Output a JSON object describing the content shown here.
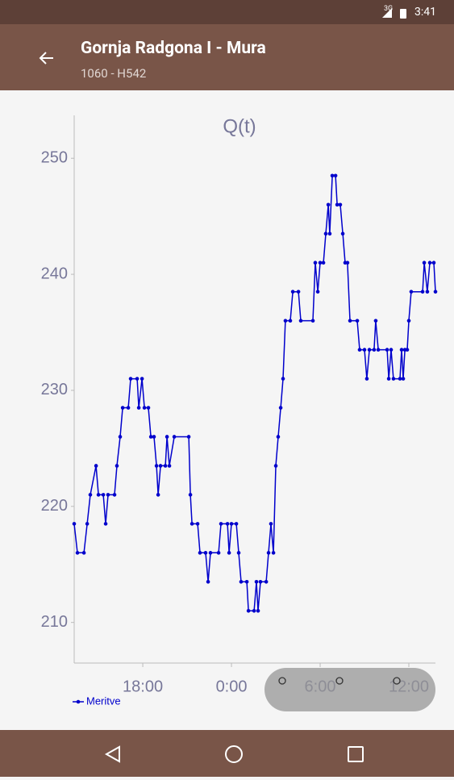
{
  "status_bar": {
    "network": "3G",
    "time": "3:41"
  },
  "app_bar": {
    "title": "Gornja Radgona I - Mura",
    "subtitle": "1060 - H542"
  },
  "chart_data": {
    "type": "line",
    "title": "Q(t)",
    "x": [
      13.36,
      13.58,
      14.02,
      14.24,
      14.45,
      14.84,
      15.0,
      15.33,
      15.49,
      15.65,
      16.09,
      16.25,
      16.47,
      16.64,
      17.02,
      17.18,
      17.62,
      17.73,
      17.95,
      18.11,
      18.38,
      18.55,
      18.76,
      18.93,
      19.04,
      19.2,
      19.53,
      19.64,
      19.8,
      20.13,
      21.11,
      21.22,
      21.33,
      21.71,
      21.87,
      22.25,
      22.42,
      22.58,
      23.13,
      23.29,
      23.73,
      23.84,
      24.0,
      24.33,
      24.49,
      24.65,
      25.04,
      25.15,
      25.53,
      25.69,
      25.8,
      25.96,
      26.35,
      26.51,
      26.67,
      26.84,
      27.0,
      27.16,
      27.33,
      27.49,
      27.65,
      27.98,
      28.15,
      28.53,
      28.69,
      29.51,
      29.67,
      29.84,
      30.0,
      30.22,
      30.38,
      30.55,
      30.65,
      30.82,
      31.04,
      31.15,
      31.36,
      31.53,
      31.69,
      31.85,
      32.02,
      32.51,
      32.67,
      33.0,
      33.16,
      33.33,
      33.65,
      33.76,
      33.93,
      34.53,
      34.64,
      34.8,
      34.96,
      35.4,
      35.51,
      35.62,
      35.73,
      35.89,
      36.0,
      36.16,
      36.93,
      37.04,
      37.25,
      37.42,
      37.69,
      37.8
    ],
    "series": [
      {
        "name": "Meritve",
        "color": "#0000cc",
        "values": [
          218.5,
          216,
          216,
          218.5,
          221,
          223.5,
          221,
          221,
          218.5,
          221,
          221,
          223.5,
          226,
          228.5,
          228.5,
          231,
          231,
          228.5,
          231,
          228.5,
          228.5,
          226,
          226,
          223.5,
          221,
          223.5,
          223.5,
          226,
          223.5,
          226,
          226,
          221,
          218.5,
          218.5,
          216,
          216,
          213.5,
          216,
          216,
          218.5,
          218.5,
          216,
          218.5,
          218.5,
          216,
          213.5,
          213.5,
          211,
          211,
          213.5,
          211,
          213.5,
          213.5,
          216,
          218.5,
          216,
          223.5,
          226,
          228.5,
          231,
          236,
          236,
          238.5,
          238.5,
          236,
          236,
          241,
          238.5,
          241,
          241,
          243.5,
          246,
          243.5,
          248.5,
          248.5,
          246,
          246,
          243.5,
          241,
          241,
          236,
          236,
          233.5,
          233.5,
          231,
          233.5,
          233.5,
          236,
          233.5,
          233.5,
          231,
          233.5,
          231,
          231,
          233.5,
          231,
          233.5,
          233.5,
          236,
          238.5,
          238.5,
          241,
          238.5,
          241,
          241,
          238.5
        ]
      }
    ],
    "xlim": [
      13.36,
      37.8
    ],
    "ylim": [
      206.5,
      253.7
    ],
    "xticks": [
      {
        "value": 18,
        "label": "18:00"
      },
      {
        "value": 24,
        "label": "0:00"
      },
      {
        "value": 30,
        "label": "6:00"
      },
      {
        "value": 36,
        "label": "12:00"
      }
    ],
    "yticks": [
      210,
      220,
      230,
      240,
      250
    ]
  }
}
